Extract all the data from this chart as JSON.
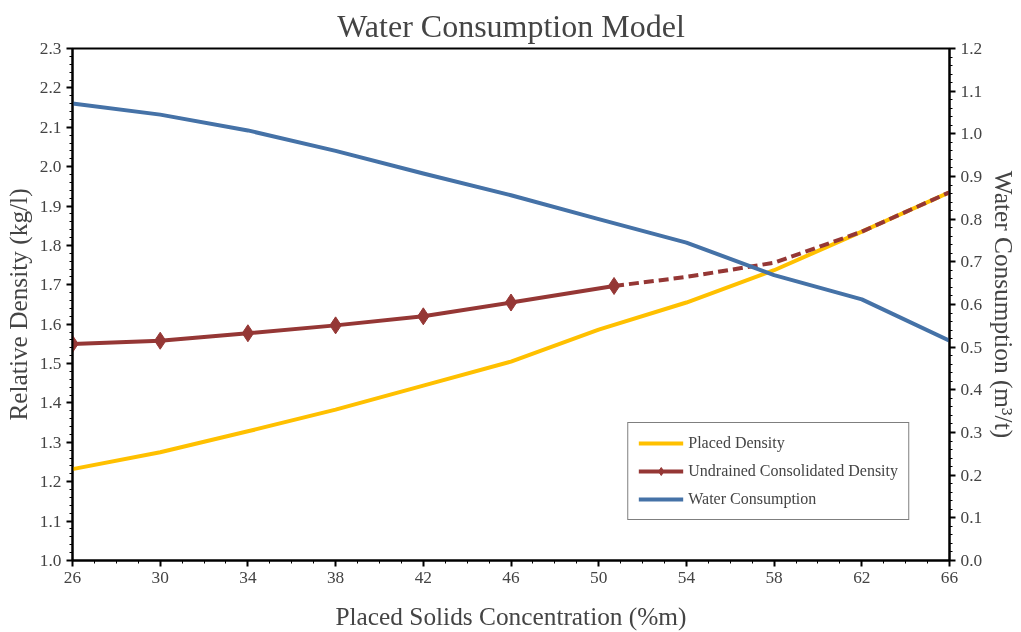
{
  "chart_data": {
    "type": "line",
    "title": "Water Consumption Model",
    "xlabel": "Placed Solids Concentration (%m)",
    "ylabel": "Relative Density (kg/l)",
    "y2label": "Water Consumption (m³/t)",
    "xlim": [
      26,
      66
    ],
    "xticks": [
      26,
      30,
      34,
      38,
      42,
      46,
      50,
      54,
      58,
      62,
      66
    ],
    "ylim": [
      1.0,
      2.3
    ],
    "yticks": [
      {
        "value": 1.0,
        "label": "1.0"
      },
      1.1,
      1.2,
      1.3,
      1.4,
      1.5,
      1.6,
      1.7,
      1.8,
      1.9,
      {
        "value": 2.0,
        "label": "2.0"
      },
      2.1,
      2.2,
      2.3
    ],
    "y2lim": [
      0,
      1.2
    ],
    "y2ticks": [
      {
        "value": 0,
        "label": "0.0"
      },
      0.1,
      0.2,
      0.3,
      0.4,
      0.5,
      0.6,
      0.7,
      0.8,
      0.9,
      {
        "value": 1.0,
        "label": "1.0"
      },
      1.1,
      1.2
    ],
    "grid": false,
    "legend": "bottom right",
    "marker": "none",
    "line_style": "solid",
    "series": [
      {
        "name": "Placed Density",
        "color": "#ffc000",
        "x": [
          26,
          30,
          34,
          38,
          42,
          46,
          50,
          54,
          58,
          62,
          66
        ],
        "values": [
          1.232,
          1.275,
          1.328,
          1.383,
          1.444,
          1.505,
          1.586,
          1.655,
          1.737,
          1.835,
          1.935
        ]
      },
      {
        "name": "Undrained Consolidated Density",
        "color": "#953735",
        "marker": "diamond",
        "x": [
          26,
          30,
          34,
          38,
          42,
          46,
          50.7
        ],
        "values": [
          1.55,
          1.558,
          1.577,
          1.597,
          1.62,
          1.655,
          1.697
        ]
      },
      {
        "color": "#953735",
        "line_style": "dashed",
        "x": [
          50.7,
          54,
          58,
          62,
          66
        ],
        "values": [
          1.697,
          1.72,
          1.756,
          1.835,
          1.935
        ]
      },
      {
        "name": "Water Consumption",
        "color": "#4572a7",
        "axis": "y2",
        "x": [
          26,
          30,
          34,
          38,
          42,
          46,
          50,
          54,
          58,
          62,
          66
        ],
        "values": [
          1.071,
          1.045,
          1.008,
          0.96,
          0.907,
          0.856,
          0.8,
          0.745,
          0.669,
          0.612,
          0.515
        ]
      }
    ]
  }
}
